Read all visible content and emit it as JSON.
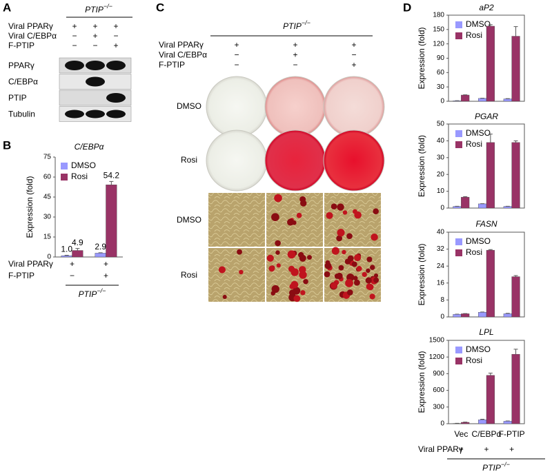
{
  "panel_labels": [
    "A",
    "B",
    "C",
    "D"
  ],
  "panel_a": {
    "genotype": {
      "gene": "PTIP",
      "superscript": "−/−"
    },
    "conditions": [
      {
        "label": "Viral PPARγ",
        "marks": [
          "+",
          "+",
          "+"
        ]
      },
      {
        "label": "Viral C/EBPα",
        "marks": [
          "−",
          "+",
          "−"
        ]
      },
      {
        "label": "F-PTIP",
        "marks": [
          "−",
          "−",
          "+"
        ]
      }
    ],
    "blots": [
      "PPARγ",
      "C/EBPα",
      "PTIP",
      "Tubulin"
    ]
  },
  "panel_c": {
    "genotype": {
      "gene": "PTIP",
      "superscript": "−/−"
    },
    "conditions": [
      {
        "label": "Viral PPARγ",
        "marks": [
          "+",
          "+",
          "+"
        ]
      },
      {
        "label": "Viral C/EBPα",
        "marks": [
          "−",
          "+",
          "−"
        ]
      },
      {
        "label": "F-PTIP",
        "marks": [
          "−",
          "−",
          "+"
        ]
      }
    ],
    "plate_rows": [
      "DMSO",
      "Rosi"
    ],
    "micrograph_rows": [
      "DMSO",
      "Rosi"
    ]
  },
  "chart_data": [
    {
      "type": "bar",
      "title": "C/EBPα",
      "ylabel": "Expression (fold)",
      "categories": [
        null,
        null
      ],
      "series": [
        {
          "name": "DMSO",
          "color": "#9999ff",
          "values": [
            1.0,
            2.9
          ],
          "value_labels": [
            "1.0",
            "2.9"
          ],
          "errors": [
            0.3,
            0.3
          ]
        },
        {
          "name": "Rosi",
          "color": "#993366",
          "values": [
            4.9,
            54.2
          ],
          "value_labels": [
            "4.9",
            "54.2"
          ],
          "errors": [
            1.5,
            2.5
          ]
        }
      ],
      "ylim": [
        0,
        75
      ],
      "yticks": [
        0,
        15,
        30,
        45,
        60,
        75
      ],
      "condition_rows": [
        {
          "label": "Viral PPARγ",
          "marks": [
            "+",
            "+"
          ]
        },
        {
          "label": "F-PTIP",
          "marks": [
            "−",
            "+"
          ]
        }
      ],
      "genotype": {
        "gene": "PTIP",
        "superscript": "−/−"
      }
    },
    {
      "type": "bar",
      "title": "aP2",
      "ylabel": "Expression (fold)",
      "categories": [
        null,
        null,
        null
      ],
      "series": [
        {
          "name": "DMSO",
          "color": "#9999ff",
          "values": [
            1,
            6,
            5
          ],
          "errors": [
            0.2,
            0.5,
            0.5
          ]
        },
        {
          "name": "Rosi",
          "color": "#993366",
          "values": [
            13,
            157,
            136
          ],
          "errors": [
            0.5,
            3,
            20
          ]
        }
      ],
      "ylim": [
        0,
        180
      ],
      "yticks": [
        0,
        30,
        60,
        90,
        120,
        150,
        180
      ]
    },
    {
      "type": "bar",
      "title": "PGAR",
      "ylabel": "Expression (fold)",
      "categories": [
        null,
        null,
        null
      ],
      "series": [
        {
          "name": "DMSO",
          "color": "#9999ff",
          "values": [
            1,
            2.5,
            1
          ],
          "errors": [
            0.1,
            0.1,
            0.1
          ]
        },
        {
          "name": "Rosi",
          "color": "#993366",
          "values": [
            6.5,
            39,
            39
          ],
          "errors": [
            0.3,
            5,
            1
          ]
        }
      ],
      "ylim": [
        0,
        50
      ],
      "yticks": [
        0,
        10,
        20,
        30,
        40,
        50
      ]
    },
    {
      "type": "bar",
      "title": "FASN",
      "ylabel": "Expression (fold)",
      "categories": [
        null,
        null,
        null
      ],
      "series": [
        {
          "name": "DMSO",
          "color": "#9999ff",
          "values": [
            1.2,
            2.2,
            1.5
          ],
          "errors": [
            0.1,
            0.1,
            0.2
          ]
        },
        {
          "name": "Rosi",
          "color": "#993366",
          "values": [
            1.5,
            31.5,
            19
          ],
          "errors": [
            0.1,
            0.3,
            0.5
          ]
        }
      ],
      "ylim": [
        0,
        40
      ],
      "yticks": [
        0,
        8,
        16,
        24,
        32,
        40
      ]
    },
    {
      "type": "bar",
      "title": "LPL",
      "ylabel": "Expression (fold)",
      "categories": [
        "Vec",
        "C/EBPα",
        "F-PTIP"
      ],
      "series": [
        {
          "name": "DMSO",
          "color": "#9999ff",
          "values": [
            5,
            70,
            45
          ],
          "errors": [
            2,
            10,
            5
          ]
        },
        {
          "name": "Rosi",
          "color": "#993366",
          "values": [
            25,
            870,
            1250
          ],
          "errors": [
            5,
            40,
            90
          ]
        }
      ],
      "ylim": [
        0,
        1500
      ],
      "yticks": [
        0,
        300,
        600,
        900,
        1200,
        1500
      ],
      "condition_rows": [
        {
          "label": "Viral PPARγ",
          "marks": [
            "+",
            "+",
            "+"
          ]
        }
      ],
      "genotype": {
        "gene": "PTIP",
        "superscript": "−/−"
      }
    }
  ]
}
